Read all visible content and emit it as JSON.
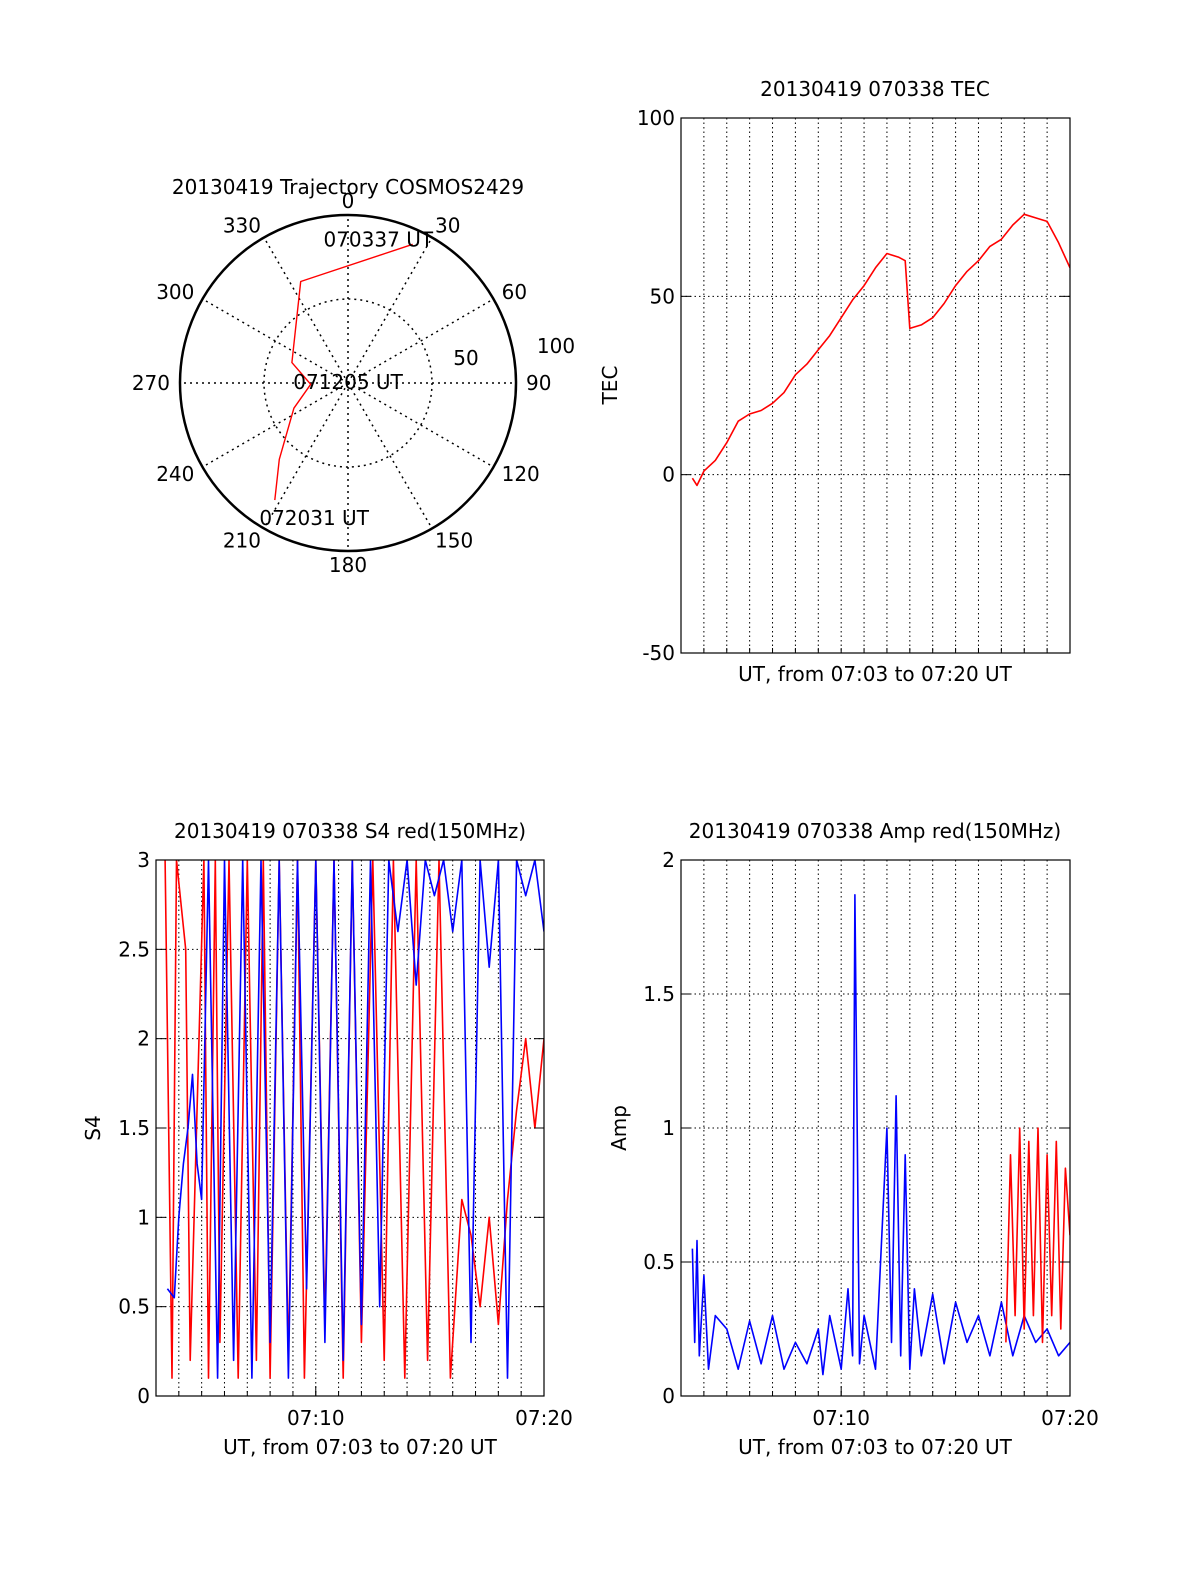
{
  "chart_data": [
    {
      "type": "polar",
      "title": "20130419 Trajectory COSMOS2429",
      "azimuth_labels": [
        "0",
        "30",
        "60",
        "90",
        "120",
        "150",
        "180",
        "210",
        "240",
        "270",
        "300",
        "330"
      ],
      "radial_labels": [
        "50",
        "100"
      ],
      "radial_ticks": [
        50,
        100
      ],
      "trajectory": [
        {
          "azimuth": 25,
          "elevation": 8
        },
        {
          "azimuth": 335,
          "elevation": 30
        },
        {
          "azimuth": 290,
          "elevation": 58
        },
        {
          "azimuth": 268,
          "elevation": 70
        },
        {
          "azimuth": 245,
          "elevation": 58
        },
        {
          "azimuth": 222,
          "elevation": 35
        },
        {
          "azimuth": 212,
          "elevation": 16
        }
      ],
      "annotations": [
        {
          "text": "070337 UT",
          "azimuth": 12,
          "elevation": 12
        },
        {
          "text": "071205 UT",
          "azimuth": 0,
          "elevation": 90
        },
        {
          "text": "072031 UT",
          "azimuth": 194,
          "elevation": 15
        }
      ],
      "colors": {
        "trajectory": "#ff0000",
        "frame": "#000000",
        "grid": "#000000"
      }
    },
    {
      "type": "line",
      "title": "20130419 070338 TEC",
      "xlabel": "UT, from 07:03 to 07:20 UT",
      "ylabel": "TEC",
      "xlim": [
        0,
        17
      ],
      "ylim": [
        -50,
        100
      ],
      "yticks": [
        "-50",
        "0",
        "50",
        "100"
      ],
      "xticks": [],
      "grid": true,
      "series": [
        {
          "color": "#ff0000",
          "x": [
            0.5,
            0.7,
            1.0,
            1.5,
            2.0,
            2.5,
            3.0,
            3.5,
            4.0,
            4.5,
            5.0,
            5.5,
            6.0,
            6.5,
            7.0,
            7.5,
            8.0,
            8.5,
            9.0,
            9.5,
            9.8,
            10.0,
            10.5,
            11.0,
            11.5,
            12.0,
            12.5,
            13.0,
            13.5,
            14.0,
            14.5,
            15.0,
            15.5,
            16.0,
            16.5,
            17.0
          ],
          "y": [
            -1,
            -3,
            1,
            4,
            9,
            15,
            17,
            18,
            20,
            23,
            28,
            31,
            35,
            39,
            44,
            49,
            53,
            58,
            62,
            61,
            60,
            41,
            42,
            44,
            48,
            53,
            57,
            60,
            64,
            66,
            70,
            73,
            72,
            71,
            65,
            58
          ]
        }
      ]
    },
    {
      "type": "line",
      "title": "20130419 070338 S4 red(150MHz)",
      "xlabel": "UT, from 07:03 to 07:20 UT",
      "ylabel": "S4",
      "xlim": [
        0,
        17
      ],
      "ylim": [
        0,
        3
      ],
      "yticks": [
        "0",
        "0.5",
        "1",
        "1.5",
        "2",
        "2.5",
        "3"
      ],
      "xticks": [
        {
          "value": 7,
          "label": "07:10"
        },
        {
          "value": 17,
          "label": "07:20"
        }
      ],
      "grid": true,
      "series": [
        {
          "color": "#ff0000",
          "x": [
            0.4,
            0.7,
            0.9,
            1.3,
            1.5,
            2.1,
            2.3,
            2.6,
            2.8,
            3.2,
            3.6,
            4.0,
            4.4,
            4.7,
            5.0,
            5.4,
            5.8,
            6.2,
            6.5,
            7.0,
            7.4,
            7.8,
            8.2,
            8.6,
            9.0,
            9.5,
            10.0,
            10.4,
            10.9,
            11.4,
            11.9,
            12.4,
            12.9,
            13.4,
            13.8,
            14.2,
            14.6,
            15.0,
            15.4,
            15.8,
            16.2,
            16.6,
            17.0
          ],
          "y": [
            3,
            0.1,
            3,
            2.5,
            0.2,
            3,
            0.1,
            3,
            0.3,
            3,
            0.1,
            3,
            0.2,
            3,
            0.1,
            3,
            0.2,
            3,
            0.1,
            3,
            0.4,
            3,
            0.1,
            3,
            0.3,
            3,
            0.2,
            3,
            0.1,
            3,
            0.2,
            3,
            0.1,
            1.1,
            0.9,
            0.5,
            1.0,
            0.4,
            1.1,
            1.6,
            2.0,
            1.5,
            2.0
          ]
        },
        {
          "color": "#0000ff",
          "x": [
            0.5,
            0.8,
            1.0,
            1.2,
            1.4,
            1.6,
            1.8,
            2.0,
            2.3,
            2.7,
            3.0,
            3.4,
            3.8,
            4.2,
            4.6,
            5.0,
            5.4,
            5.8,
            6.2,
            6.6,
            7.0,
            7.4,
            7.8,
            8.2,
            8.6,
            9.0,
            9.4,
            9.8,
            10.2,
            10.6,
            11.0,
            11.4,
            11.8,
            12.2,
            12.6,
            13.0,
            13.4,
            13.8,
            14.2,
            14.6,
            15.0,
            15.4,
            15.8,
            16.2,
            16.6,
            17.0
          ],
          "y": [
            0.6,
            0.55,
            1.0,
            1.3,
            1.5,
            1.8,
            1.3,
            1.1,
            3,
            0.1,
            3,
            0.2,
            3,
            0.1,
            3,
            0.3,
            3,
            0.1,
            3,
            0.6,
            3,
            0.3,
            3,
            0.2,
            3,
            0.4,
            3,
            0.5,
            3,
            2.6,
            3,
            2.3,
            3,
            2.8,
            3,
            2.6,
            3,
            0.3,
            3,
            2.4,
            3,
            0.1,
            3,
            2.8,
            3,
            2.6
          ]
        }
      ]
    },
    {
      "type": "line",
      "title": "20130419 070338 Amp red(150MHz)",
      "xlabel": "UT, from 07:03 to 07:20 UT",
      "ylabel": "Amp",
      "xlim": [
        0,
        17
      ],
      "ylim": [
        0,
        2
      ],
      "yticks": [
        "0",
        "0.5",
        "1",
        "1.5",
        "2"
      ],
      "xticks": [
        {
          "value": 7,
          "label": "07:10"
        },
        {
          "value": 17,
          "label": "07:20"
        }
      ],
      "grid": true,
      "series": [
        {
          "color": "#0000ff",
          "x": [
            0.5,
            0.6,
            0.7,
            0.8,
            1.0,
            1.2,
            1.5,
            2.0,
            2.5,
            3.0,
            3.5,
            4.0,
            4.5,
            5.0,
            5.5,
            6.0,
            6.2,
            6.5,
            7.0,
            7.3,
            7.5,
            7.6,
            7.8,
            8.0,
            8.5,
            9.0,
            9.2,
            9.4,
            9.6,
            9.8,
            10.0,
            10.2,
            10.5,
            11.0,
            11.5,
            12.0,
            12.5,
            13.0,
            13.5,
            14.0,
            14.5,
            15.0,
            15.5,
            16.0,
            16.5,
            17.0
          ],
          "y": [
            0.55,
            0.2,
            0.58,
            0.15,
            0.45,
            0.1,
            0.3,
            0.25,
            0.1,
            0.28,
            0.12,
            0.3,
            0.1,
            0.2,
            0.12,
            0.25,
            0.08,
            0.3,
            0.1,
            0.4,
            0.15,
            1.87,
            0.12,
            0.3,
            0.1,
            1.0,
            0.2,
            1.12,
            0.15,
            0.9,
            0.1,
            0.4,
            0.15,
            0.38,
            0.12,
            0.35,
            0.2,
            0.3,
            0.15,
            0.35,
            0.15,
            0.3,
            0.2,
            0.25,
            0.15,
            0.2
          ]
        },
        {
          "color": "#ff0000",
          "x": [
            14.2,
            14.4,
            14.6,
            14.8,
            15.0,
            15.2,
            15.4,
            15.6,
            15.8,
            16.0,
            16.2,
            16.4,
            16.6,
            16.8,
            17.0
          ],
          "y": [
            0.2,
            0.9,
            0.3,
            1.0,
            0.25,
            0.95,
            0.3,
            1.0,
            0.2,
            0.9,
            0.3,
            0.95,
            0.25,
            0.85,
            0.6
          ]
        }
      ]
    }
  ]
}
